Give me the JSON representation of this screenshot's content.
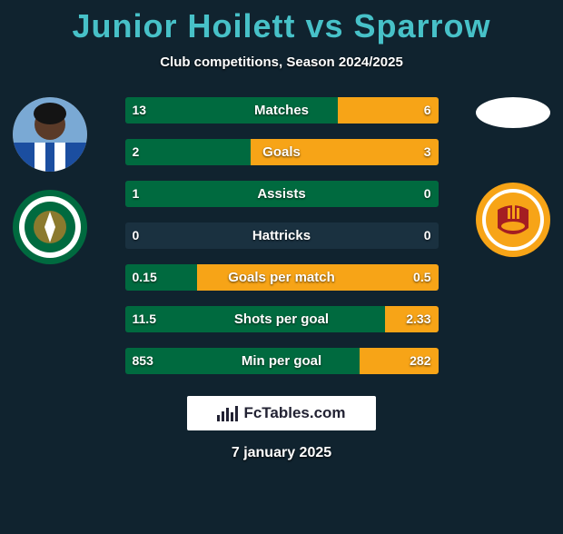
{
  "title_color": "#47c1c8",
  "title_parts": {
    "left_name": "Junior Hoilett",
    "vs": " vs ",
    "right_name": "Sparrow"
  },
  "subtitle": "Club competitions, Season 2024/2025",
  "bar_base_color": "#1a3140",
  "left_bar_color": "#006a3f",
  "right_bar_color": "#f7a417",
  "rows": [
    {
      "label": "Matches",
      "left": "13",
      "right": "6",
      "left_pct": 68,
      "right_pct": 32
    },
    {
      "label": "Goals",
      "left": "2",
      "right": "3",
      "left_pct": 40,
      "right_pct": 60
    },
    {
      "label": "Assists",
      "left": "1",
      "right": "0",
      "left_pct": 100,
      "right_pct": 0
    },
    {
      "label": "Hattricks",
      "left": "0",
      "right": "0",
      "left_pct": 0,
      "right_pct": 0
    },
    {
      "label": "Goals per match",
      "left": "0.15",
      "right": "0.5",
      "left_pct": 23,
      "right_pct": 77
    },
    {
      "label": "Shots per goal",
      "left": "11.5",
      "right": "2.33",
      "left_pct": 83,
      "right_pct": 17
    },
    {
      "label": "Min per goal",
      "left": "853",
      "right": "282",
      "left_pct": 75,
      "right_pct": 25
    }
  ],
  "left_player": {
    "has_photo": true,
    "club_name": "Hibernian",
    "club_badge_bg": "#006a3f",
    "club_badge_ring": "#ffffff"
  },
  "right_player": {
    "has_photo": false,
    "club_name": "Motherwell",
    "club_badge_bg": "#f7a417",
    "club_badge_detail": "#a41e22"
  },
  "footer_brand": "FcTables.com",
  "date": "7 january 2025"
}
